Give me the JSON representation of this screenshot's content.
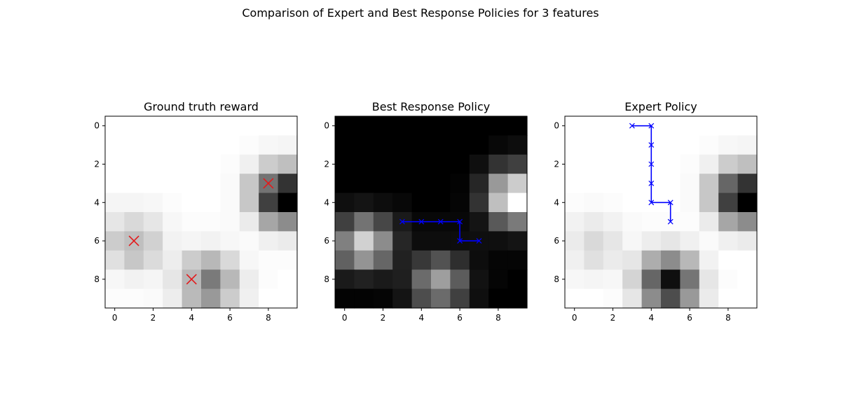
{
  "figure": {
    "suptitle": "Comparison of Expert and Best Response Policies for 3 features"
  },
  "chart_data": [
    {
      "type": "heatmap",
      "title": "Ground truth reward",
      "colormap": "gray",
      "x_ticks": [
        "0",
        "2",
        "4",
        "6",
        "8"
      ],
      "y_ticks": [
        "0",
        "2",
        "4",
        "6",
        "8"
      ],
      "grid": false,
      "values": [
        [
          1.0,
          1.0,
          1.0,
          1.0,
          1.0,
          1.0,
          1.0,
          1.0,
          1.0,
          1.0
        ],
        [
          1.0,
          1.0,
          1.0,
          1.0,
          1.0,
          1.0,
          1.0,
          0.99,
          0.97,
          0.96
        ],
        [
          1.0,
          1.0,
          1.0,
          1.0,
          1.0,
          1.0,
          0.99,
          0.94,
          0.8,
          0.75
        ],
        [
          1.0,
          1.0,
          1.0,
          1.0,
          1.0,
          1.0,
          0.98,
          0.78,
          0.45,
          0.2
        ],
        [
          0.96,
          0.96,
          0.97,
          0.99,
          1.0,
          1.0,
          0.98,
          0.78,
          0.25,
          0.0
        ],
        [
          0.9,
          0.85,
          0.9,
          0.97,
          0.99,
          0.99,
          0.98,
          0.92,
          0.65,
          0.55
        ],
        [
          0.8,
          0.75,
          0.82,
          0.95,
          0.96,
          0.95,
          0.97,
          0.98,
          0.94,
          0.92
        ],
        [
          0.88,
          0.78,
          0.86,
          0.93,
          0.8,
          0.72,
          0.85,
          0.97,
          0.99,
          0.99
        ],
        [
          0.97,
          0.95,
          0.96,
          0.9,
          0.72,
          0.48,
          0.72,
          0.93,
          0.99,
          1.0
        ],
        [
          0.99,
          0.99,
          0.98,
          0.93,
          0.73,
          0.6,
          0.8,
          0.94,
          1.0,
          1.0
        ]
      ],
      "markers": [
        {
          "x": 8,
          "y": 3
        },
        {
          "x": 1,
          "y": 6
        },
        {
          "x": 4,
          "y": 8
        }
      ],
      "marker_style": "x",
      "marker_color": "#e31a1c"
    },
    {
      "type": "heatmap",
      "title": "Best Response Policy",
      "colormap": "gray",
      "x_ticks": [
        "0",
        "2",
        "4",
        "6",
        "8"
      ],
      "y_ticks": [
        "0",
        "2",
        "4",
        "6",
        "8"
      ],
      "grid": false,
      "values": [
        [
          0.0,
          0.0,
          0.0,
          0.0,
          0.0,
          0.0,
          0.0,
          0.0,
          0.0,
          0.0
        ],
        [
          0.0,
          0.0,
          0.0,
          0.0,
          0.0,
          0.0,
          0.0,
          0.0,
          0.03,
          0.05
        ],
        [
          0.0,
          0.0,
          0.0,
          0.0,
          0.0,
          0.0,
          0.0,
          0.06,
          0.2,
          0.25
        ],
        [
          0.0,
          0.0,
          0.0,
          0.0,
          0.0,
          0.0,
          0.01,
          0.15,
          0.6,
          0.8
        ],
        [
          0.06,
          0.08,
          0.05,
          0.03,
          0.0,
          0.0,
          0.02,
          0.2,
          0.75,
          1.0
        ],
        [
          0.25,
          0.45,
          0.28,
          0.1,
          0.03,
          0.03,
          0.03,
          0.08,
          0.35,
          0.48
        ],
        [
          0.5,
          0.82,
          0.55,
          0.15,
          0.05,
          0.05,
          0.05,
          0.06,
          0.06,
          0.08
        ],
        [
          0.38,
          0.58,
          0.4,
          0.13,
          0.22,
          0.32,
          0.18,
          0.05,
          0.02,
          0.02
        ],
        [
          0.1,
          0.13,
          0.1,
          0.12,
          0.42,
          0.62,
          0.36,
          0.07,
          0.02,
          0.0
        ],
        [
          0.01,
          0.01,
          0.02,
          0.08,
          0.3,
          0.42,
          0.25,
          0.06,
          0.0,
          0.0
        ]
      ],
      "path": [
        {
          "x": 3,
          "y": 5
        },
        {
          "x": 4,
          "y": 5
        },
        {
          "x": 5,
          "y": 5
        },
        {
          "x": 6,
          "y": 5
        },
        {
          "x": 6,
          "y": 6
        },
        {
          "x": 7,
          "y": 6
        }
      ],
      "path_color": "#0000ff"
    },
    {
      "type": "heatmap",
      "title": "Expert Policy",
      "colormap": "gray",
      "x_ticks": [
        "0",
        "2",
        "4",
        "6",
        "8"
      ],
      "y_ticks": [
        "0",
        "2",
        "4",
        "6",
        "8"
      ],
      "grid": false,
      "values": [
        [
          1.0,
          1.0,
          1.0,
          1.0,
          1.0,
          1.0,
          1.0,
          1.0,
          1.0,
          1.0
        ],
        [
          1.0,
          1.0,
          1.0,
          1.0,
          1.0,
          1.0,
          1.0,
          0.99,
          0.97,
          0.96
        ],
        [
          1.0,
          1.0,
          1.0,
          1.0,
          1.0,
          1.0,
          0.99,
          0.94,
          0.8,
          0.75
        ],
        [
          1.0,
          1.0,
          1.0,
          1.0,
          1.0,
          1.0,
          0.98,
          0.78,
          0.4,
          0.2
        ],
        [
          0.99,
          0.98,
          0.99,
          1.0,
          1.0,
          1.0,
          0.98,
          0.78,
          0.25,
          0.0
        ],
        [
          0.95,
          0.92,
          0.95,
          0.98,
          0.99,
          0.99,
          0.99,
          0.92,
          0.65,
          0.55
        ],
        [
          0.92,
          0.85,
          0.9,
          0.97,
          0.93,
          0.9,
          0.94,
          0.98,
          0.94,
          0.92
        ],
        [
          0.94,
          0.88,
          0.92,
          0.9,
          0.68,
          0.55,
          0.72,
          0.95,
          1.0,
          1.0
        ],
        [
          0.97,
          0.96,
          0.97,
          0.83,
          0.4,
          0.06,
          0.46,
          0.9,
          0.99,
          1.0
        ],
        [
          1.0,
          1.0,
          0.99,
          0.9,
          0.55,
          0.3,
          0.6,
          0.92,
          1.0,
          1.0
        ]
      ],
      "path": [
        {
          "x": 3,
          "y": 0
        },
        {
          "x": 4,
          "y": 0
        },
        {
          "x": 4,
          "y": 1
        },
        {
          "x": 4,
          "y": 2
        },
        {
          "x": 4,
          "y": 3
        },
        {
          "x": 4,
          "y": 4
        },
        {
          "x": 5,
          "y": 4
        },
        {
          "x": 5,
          "y": 5
        }
      ],
      "path_color": "#0000ff"
    }
  ]
}
